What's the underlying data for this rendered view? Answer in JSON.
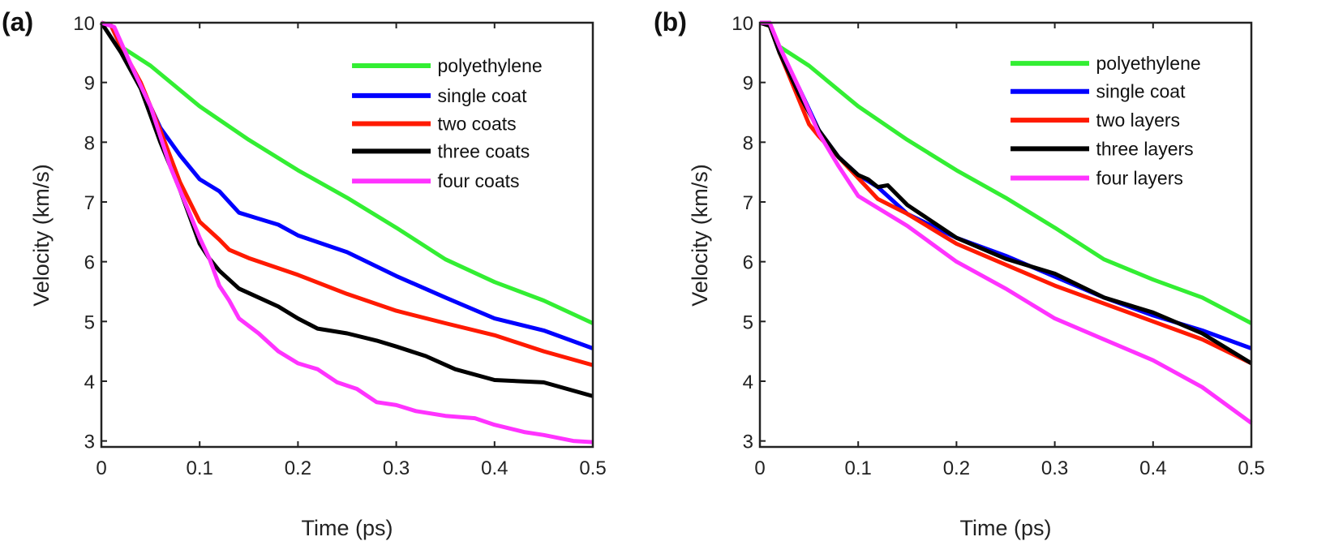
{
  "chart_data": [
    {
      "type": "line",
      "panel_label": "(a)",
      "xlabel": "Time (ps)",
      "ylabel": "Velocity (km/s)",
      "xlim": [
        0,
        0.5
      ],
      "ylim": [
        2.9,
        10
      ],
      "xticks": [
        "0",
        "0.1",
        "0.2",
        "0.3",
        "0.4",
        "0.5"
      ],
      "yticks": [
        "3",
        "4",
        "5",
        "6",
        "7",
        "8",
        "9",
        "10"
      ],
      "grid": false,
      "legend_position": "top-right",
      "series": [
        {
          "name": "polyethylene",
          "color": "#33ee33",
          "x": [
            0,
            0.01,
            0.02,
            0.05,
            0.1,
            0.15,
            0.2,
            0.25,
            0.3,
            0.35,
            0.4,
            0.45,
            0.5
          ],
          "y": [
            10,
            9.95,
            9.6,
            9.28,
            8.6,
            8.04,
            7.53,
            7.07,
            6.57,
            6.04,
            5.66,
            5.35,
            4.97
          ]
        },
        {
          "name": "single coat",
          "color": "#0000ff",
          "x": [
            0,
            0.01,
            0.02,
            0.04,
            0.06,
            0.08,
            0.1,
            0.12,
            0.14,
            0.16,
            0.18,
            0.2,
            0.25,
            0.3,
            0.35,
            0.4,
            0.45,
            0.5
          ],
          "y": [
            10,
            9.95,
            9.6,
            8.95,
            8.24,
            7.78,
            7.38,
            7.18,
            6.82,
            6.72,
            6.62,
            6.44,
            6.16,
            5.76,
            5.4,
            5.05,
            4.85,
            4.55
          ]
        },
        {
          "name": "two coats",
          "color": "#ff1a00",
          "x": [
            0,
            0.01,
            0.02,
            0.04,
            0.06,
            0.08,
            0.1,
            0.12,
            0.13,
            0.15,
            0.2,
            0.25,
            0.3,
            0.35,
            0.4,
            0.45,
            0.5
          ],
          "y": [
            10,
            9.95,
            9.6,
            9.0,
            8.2,
            7.33,
            6.67,
            6.37,
            6.2,
            6.06,
            5.78,
            5.46,
            5.18,
            4.97,
            4.77,
            4.5,
            4.27
          ]
        },
        {
          "name": "three coats",
          "color": "#000000",
          "x": [
            0,
            0.02,
            0.04,
            0.06,
            0.08,
            0.1,
            0.11,
            0.12,
            0.14,
            0.16,
            0.18,
            0.2,
            0.22,
            0.25,
            0.28,
            0.3,
            0.33,
            0.36,
            0.4,
            0.45,
            0.5
          ],
          "y": [
            10,
            9.5,
            8.9,
            8.0,
            7.2,
            6.3,
            6.05,
            5.85,
            5.55,
            5.4,
            5.25,
            5.05,
            4.88,
            4.8,
            4.68,
            4.58,
            4.42,
            4.2,
            4.02,
            3.98,
            3.75
          ]
        },
        {
          "name": "four coats",
          "color": "#ff33ff",
          "x": [
            0,
            0.013,
            0.03,
            0.05,
            0.07,
            0.09,
            0.1,
            0.11,
            0.12,
            0.13,
            0.14,
            0.16,
            0.18,
            0.2,
            0.22,
            0.24,
            0.26,
            0.28,
            0.3,
            0.32,
            0.35,
            0.38,
            0.4,
            0.43,
            0.45,
            0.48,
            0.5
          ],
          "y": [
            10,
            9.93,
            9.3,
            8.6,
            7.6,
            6.8,
            6.4,
            6.05,
            5.6,
            5.35,
            5.05,
            4.8,
            4.5,
            4.3,
            4.2,
            3.98,
            3.87,
            3.65,
            3.6,
            3.5,
            3.42,
            3.38,
            3.27,
            3.15,
            3.1,
            3.0,
            2.98
          ]
        }
      ]
    },
    {
      "type": "line",
      "panel_label": "(b)",
      "xlabel": "Time (ps)",
      "ylabel": "Velocity (km/s)",
      "xlim": [
        0,
        0.5
      ],
      "ylim": [
        2.9,
        10
      ],
      "xticks": [
        "0",
        "0.1",
        "0.2",
        "0.3",
        "0.4",
        "0.5"
      ],
      "yticks": [
        "3",
        "4",
        "5",
        "6",
        "7",
        "8",
        "9",
        "10"
      ],
      "grid": false,
      "legend_position": "top-right",
      "series": [
        {
          "name": "polyethylene",
          "color": "#33ee33",
          "x": [
            0,
            0.01,
            0.02,
            0.05,
            0.1,
            0.15,
            0.2,
            0.25,
            0.3,
            0.35,
            0.4,
            0.45,
            0.5
          ],
          "y": [
            10,
            9.95,
            9.6,
            9.28,
            8.6,
            8.04,
            7.53,
            7.07,
            6.57,
            6.04,
            5.7,
            5.4,
            4.97
          ]
        },
        {
          "name": "single coat",
          "color": "#0000ff",
          "x": [
            0,
            0.01,
            0.02,
            0.04,
            0.06,
            0.08,
            0.1,
            0.12,
            0.15,
            0.2,
            0.25,
            0.3,
            0.35,
            0.4,
            0.45,
            0.5
          ],
          "y": [
            10,
            9.95,
            9.5,
            8.9,
            8.2,
            7.75,
            7.45,
            7.25,
            6.8,
            6.4,
            6.1,
            5.75,
            5.4,
            5.1,
            4.85,
            4.55
          ]
        },
        {
          "name": "two layers",
          "color": "#ff1a00",
          "x": [
            0,
            0.01,
            0.02,
            0.04,
            0.05,
            0.06,
            0.08,
            0.1,
            0.12,
            0.15,
            0.2,
            0.25,
            0.3,
            0.35,
            0.4,
            0.45,
            0.5
          ],
          "y": [
            10,
            9.95,
            9.5,
            8.7,
            8.3,
            8.1,
            7.75,
            7.4,
            7.05,
            6.8,
            6.3,
            5.95,
            5.6,
            5.3,
            5.0,
            4.7,
            4.3
          ]
        },
        {
          "name": "three layers",
          "color": "#000000",
          "x": [
            0,
            0.01,
            0.02,
            0.04,
            0.06,
            0.08,
            0.1,
            0.11,
            0.12,
            0.13,
            0.15,
            0.2,
            0.25,
            0.3,
            0.35,
            0.4,
            0.45,
            0.5
          ],
          "y": [
            10,
            9.95,
            9.5,
            8.8,
            8.2,
            7.75,
            7.45,
            7.38,
            7.25,
            7.28,
            6.95,
            6.4,
            6.05,
            5.8,
            5.4,
            5.15,
            4.8,
            4.3
          ]
        },
        {
          "name": "four layers",
          "color": "#ff33ff",
          "x": [
            0,
            0.01,
            0.02,
            0.04,
            0.06,
            0.08,
            0.1,
            0.12,
            0.15,
            0.2,
            0.25,
            0.3,
            0.35,
            0.4,
            0.45,
            0.5
          ],
          "y": [
            10,
            10,
            9.6,
            8.9,
            8.15,
            7.6,
            7.1,
            6.9,
            6.6,
            6.0,
            5.55,
            5.05,
            4.7,
            4.35,
            3.9,
            3.3
          ]
        }
      ]
    }
  ]
}
